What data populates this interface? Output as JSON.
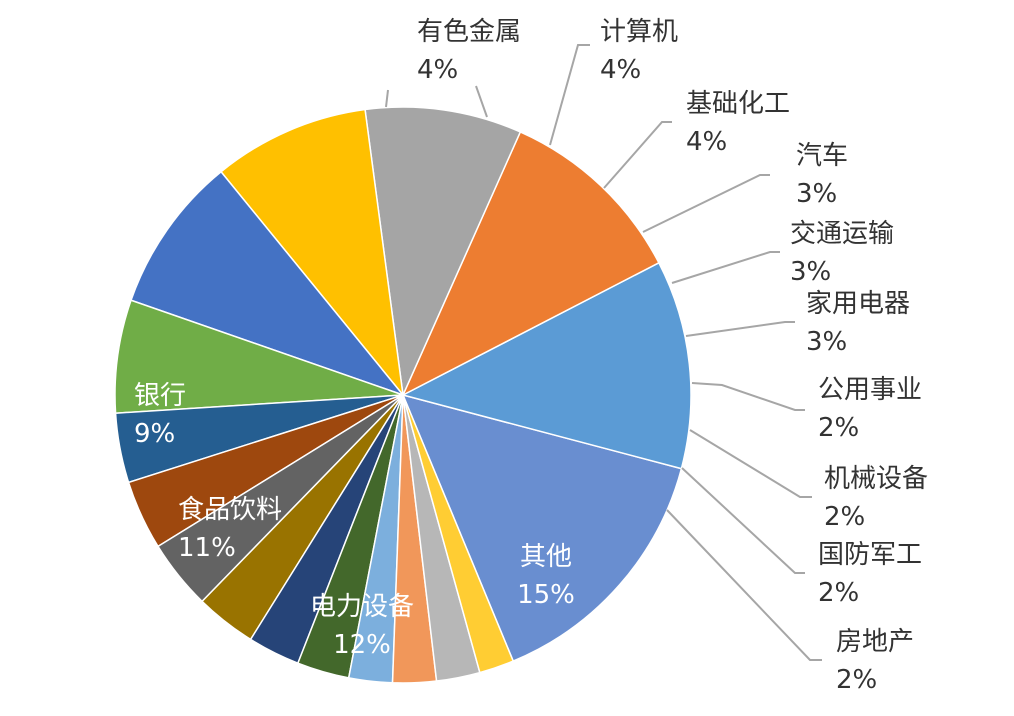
{
  "chart_data": {
    "type": "pie",
    "title": "",
    "slices": [
      {
        "label": "其他",
        "pct_label": "15%",
        "value": 15,
        "color": "#698ED0",
        "label_pos": "inside"
      },
      {
        "label": "电力设备",
        "pct_label": "12%",
        "value": 12,
        "color": "#5B9BD5",
        "label_pos": "inside"
      },
      {
        "label": "食品饮料",
        "pct_label": "11%",
        "value": 11,
        "color": "#ED7D31",
        "label_pos": "inside"
      },
      {
        "label": "银行",
        "pct_label": "9%",
        "value": 9,
        "color": "#A5A5A5",
        "label_pos": "inside"
      },
      {
        "label": "",
        "pct_label": "",
        "value": 9,
        "color": "#FFC000",
        "label_pos": "none"
      },
      {
        "label": "",
        "pct_label": "",
        "value": 9,
        "color": "#4472C4",
        "label_pos": "none"
      },
      {
        "label": "",
        "pct_label": "",
        "value": 6.5,
        "color": "#70AD47",
        "label_pos": "none"
      },
      {
        "label": "有色金属",
        "pct_label": "4%",
        "value": 4,
        "color": "#255E91",
        "label_pos": "outside"
      },
      {
        "label": "计算机",
        "pct_label": "4%",
        "value": 4,
        "color": "#9E480E",
        "label_pos": "outside"
      },
      {
        "label": "基础化工",
        "pct_label": "4%",
        "value": 4,
        "color": "#636363",
        "label_pos": "outside"
      },
      {
        "label": "汽车",
        "pct_label": "3%",
        "value": 3.5,
        "color": "#997300",
        "label_pos": "outside"
      },
      {
        "label": "交通运输",
        "pct_label": "3%",
        "value": 3,
        "color": "#264478",
        "label_pos": "outside"
      },
      {
        "label": "家用电器",
        "pct_label": "3%",
        "value": 3,
        "color": "#43682B",
        "label_pos": "outside"
      },
      {
        "label": "公用事业",
        "pct_label": "2%",
        "value": 2.5,
        "color": "#7CAFDD",
        "label_pos": "outside"
      },
      {
        "label": "机械设备",
        "pct_label": "2%",
        "value": 2.5,
        "color": "#F1975A",
        "label_pos": "outside"
      },
      {
        "label": "国防军工",
        "pct_label": "2%",
        "value": 2.5,
        "color": "#B7B7B7",
        "label_pos": "outside"
      },
      {
        "label": "房地产",
        "pct_label": "2%",
        "value": 2,
        "color": "#FFCD33",
        "label_pos": "outside"
      }
    ]
  }
}
